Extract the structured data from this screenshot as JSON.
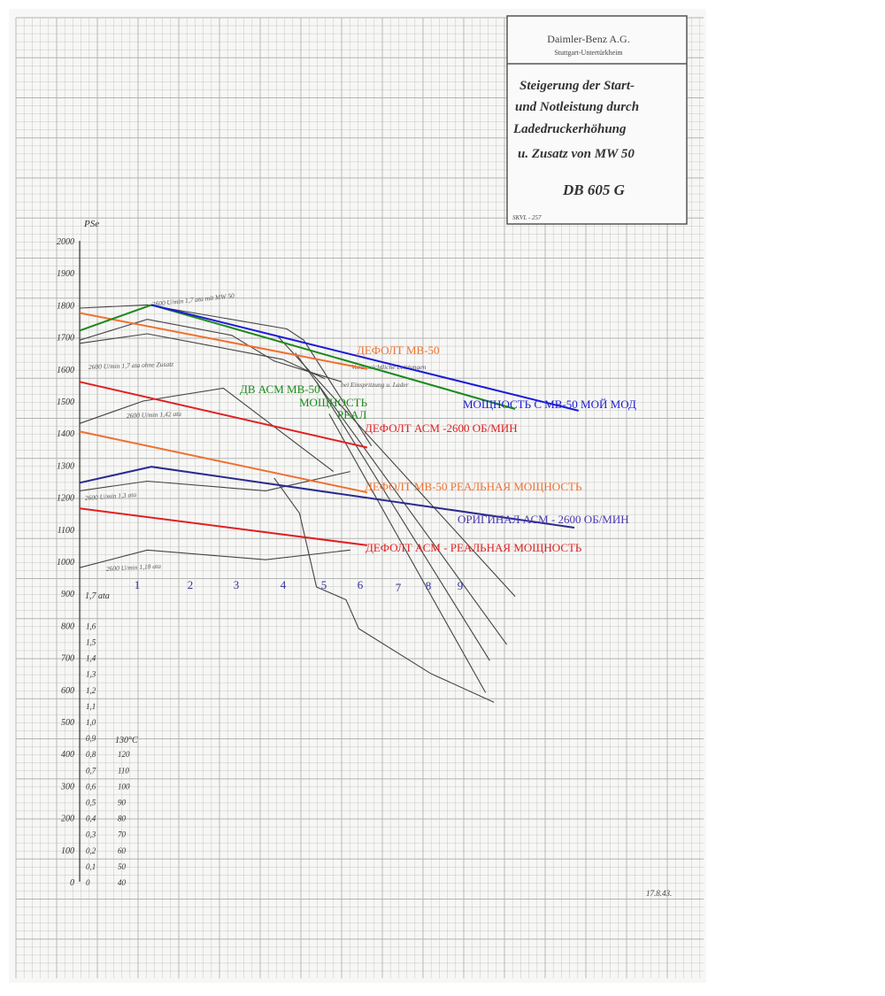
{
  "title_block": {
    "company": "Daimler-Benz A.G.",
    "location": "Stuttgart-Untertürkheim",
    "title_lines": [
      "Steigerung der Start-",
      "und Notleistung durch",
      "Ladedruckerhöhung",
      "u. Zusatz von MW 50"
    ],
    "engine": "DB 605 G",
    "doc_ref": "SKVL - 257",
    "date": "17.8.43."
  },
  "chart_data": {
    "type": "line",
    "y_unit_label": "PSe",
    "y_ticks": [
      0,
      100,
      200,
      300,
      400,
      500,
      600,
      700,
      800,
      900,
      1000,
      1100,
      1200,
      1300,
      1400,
      1500,
      1600,
      1700,
      1800,
      1900,
      2000
    ],
    "ata_label": "1,7 ata",
    "ata_ticks": [
      "0",
      "0,1",
      "0,2",
      "0,3",
      "0,4",
      "0,5",
      "0,6",
      "0,7",
      "0,8",
      "0,9",
      "1,0",
      "1,1",
      "1,2",
      "1,3",
      "1,4",
      "1,5",
      "1,6"
    ],
    "temp_label": "130°C",
    "temp_ticks": [
      "40",
      "50",
      "60",
      "70",
      "80",
      "90",
      "100",
      "110",
      "120"
    ],
    "x_ticks": [
      "1",
      "2",
      "3",
      "4",
      "5",
      "6",
      "7",
      "8",
      "9"
    ],
    "x_range": [
      0,
      10.5
    ],
    "y_range": [
      0,
      2000
    ],
    "original_annotations": [
      "2600 U/min 1,7 ata mit MW 50",
      "2600 U/min 1,7 ata ohne Zusatz",
      "2600 U/min 1,42 ata",
      "2600 U/min 1,3 ata",
      "2600 U/min 1,18 ata",
      "Voraussichtliche Leistungen",
      "bei Einspritzung u. Lader"
    ],
    "overlay_series": [
      {
        "name": "ДЕФОЛТ МВ-50",
        "color": "#f07030",
        "x": [
          0,
          6.8
        ],
        "y": [
          1775,
          1600
        ]
      },
      {
        "name": "ДВ АСМ МВ-50 МОЩНОСТЬ РЕАЛ",
        "color": "#1a8a1a",
        "x": [
          0,
          1.7,
          10.3
        ],
        "y": [
          1720,
          1800,
          1475
        ]
      },
      {
        "name": "МОЩНОСТЬ С МВ-50 МОЙ МОД",
        "color": "#1a1ad8",
        "x": [
          1.7,
          11.8
        ],
        "y": [
          1800,
          1470
        ]
      },
      {
        "name": "ДЕФОЛТ АСМ -2600 ОБ/МИН",
        "color": "#e02020",
        "x": [
          0,
          6.8
        ],
        "y": [
          1560,
          1355
        ]
      },
      {
        "name": "ДЕФОЛТ МВ-50 РЕАЛЬНАЯ МОЩНОСТЬ",
        "color": "#f07030",
        "x": [
          0,
          6.8
        ],
        "y": [
          1405,
          1215
        ]
      },
      {
        "name": "ОРИГИНАЛ АСМ - 2600 ОБ/МИН",
        "color": "#2a2a90",
        "x": [
          0,
          1.7,
          11.7
        ],
        "y": [
          1245,
          1295,
          1105
        ]
      },
      {
        "name": "ДЕФОЛТ АСМ - РЕАЛЬНАЯ МОЩНОСТЬ",
        "color": "#e02020",
        "x": [
          0,
          6.8
        ],
        "y": [
          1165,
          1050
        ]
      }
    ],
    "overlay_labels": [
      {
        "text": "ДЕФОЛТ МВ-50",
        "color": "#f07030"
      },
      {
        "text": "ДВ АСМ МВ-50",
        "color": "#1a8a1a"
      },
      {
        "text": "МОЩНОСТЬ",
        "color": "#1a8a1a"
      },
      {
        "text": "РЕАЛ",
        "color": "#1a8a1a"
      },
      {
        "text": "МОЩНОСТЬ С МВ-50 МОЙ МОД",
        "color": "#1a1ad8"
      },
      {
        "text": "ДЕФОЛТ АСМ -2600 ОБ/МИН",
        "color": "#e02020"
      },
      {
        "text": "ДЕФОЛТ МВ-50 РЕАЛЬНАЯ МОЩНОСТЬ",
        "color": "#f07030"
      },
      {
        "text": "ОРИГИНАЛ АСМ - 2600 ОБ/МИН",
        "color": "#4a3ab0"
      },
      {
        "text": "ДЕФОЛТ АСМ - РЕАЛЬНАЯ МОЩНОСТЬ",
        "color": "#e02020"
      }
    ],
    "original_curves": [
      {
        "x": [
          0,
          1.6,
          4.9,
          5.3,
          6.9
        ],
        "y": [
          1790,
          1800,
          1725,
          1690,
          1360
        ]
      },
      {
        "x": [
          0,
          1.6,
          4.8,
          5.8
        ],
        "y": [
          1680,
          1710,
          1630,
          1570
        ]
      },
      {
        "x": [
          0,
          1.5,
          3.4,
          6.0
        ],
        "y": [
          1430,
          1500,
          1540,
          1280
        ]
      },
      {
        "x": [
          0,
          1.6,
          4.4,
          6.4
        ],
        "y": [
          1220,
          1250,
          1220,
          1280
        ]
      },
      {
        "x": [
          0,
          1.6,
          4.4,
          6.4
        ],
        "y": [
          980,
          1035,
          1005,
          1035
        ]
      },
      {
        "x": [
          0,
          1.6,
          3.6,
          4.6,
          6.2
        ],
        "y": [
          1690,
          1755,
          1705,
          1625,
          1560
        ]
      },
      {
        "x": [
          4.7,
          10.3
        ],
        "y": [
          1700,
          890
        ]
      },
      {
        "x": [
          5.1,
          10.1
        ],
        "y": [
          1650,
          740
        ]
      },
      {
        "x": [
          5.6,
          9.7
        ],
        "y": [
          1560,
          690
        ]
      },
      {
        "x": [
          5.9,
          9.6
        ],
        "y": [
          1460,
          590
        ]
      },
      {
        "x": [
          4.6,
          5.2,
          5.6,
          6.3,
          6.6,
          8.3,
          9.8
        ],
        "y": [
          1260,
          1150,
          920,
          880,
          790,
          650,
          560
        ]
      }
    ],
    "grid": true,
    "colors": {
      "grid": "#b3b3b3",
      "ink": "#333333",
      "paper": "#f6f6f4"
    }
  }
}
